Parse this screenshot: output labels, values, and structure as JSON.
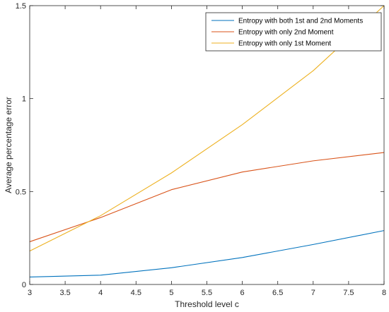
{
  "chart_data": {
    "type": "line",
    "xlabel": "Threshold level c",
    "ylabel": "Average percentage error",
    "xlim": [
      3,
      8
    ],
    "ylim": [
      0,
      1.5
    ],
    "x_ticks": [
      "3",
      "3.5",
      "4",
      "4.5",
      "5",
      "5.5",
      "6",
      "6.5",
      "7",
      "7.5",
      "8"
    ],
    "y_ticks": [
      "0",
      "0.5",
      "1",
      "1.5"
    ],
    "grid": false,
    "legend_position": "top-right",
    "x": [
      3,
      4,
      5,
      6,
      7,
      8
    ],
    "series": [
      {
        "name": "Entropy with both 1st and 2nd Moments",
        "color": "#0072BD",
        "values": [
          0.04,
          0.05,
          0.09,
          0.145,
          0.215,
          0.29
        ]
      },
      {
        "name": "Entropy with only 2nd Moment",
        "color": "#D95319",
        "values": [
          0.23,
          0.36,
          0.51,
          0.605,
          0.665,
          0.71
        ]
      },
      {
        "name": "Entropy with only 1st Moment",
        "color": "#EDB120",
        "values": [
          0.18,
          0.37,
          0.6,
          0.86,
          1.15,
          1.5
        ]
      }
    ]
  }
}
